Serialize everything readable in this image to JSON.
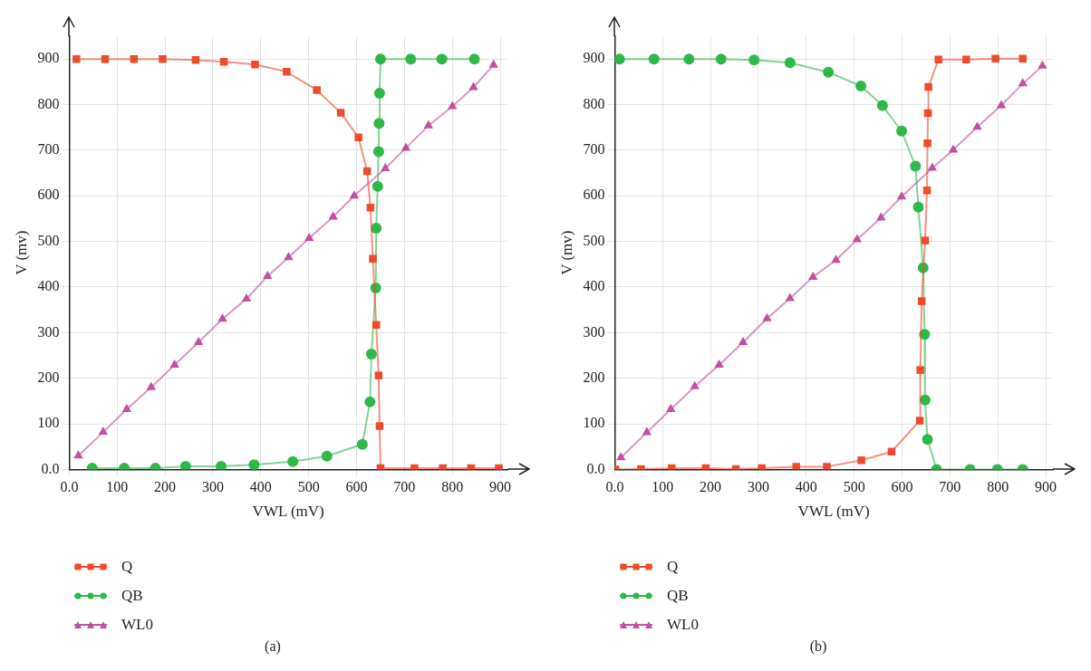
{
  "chart_data": [
    {
      "type": "line",
      "xlabel": "VWL (mV)",
      "ylabel": "V (mv)",
      "annotations": [
        "(a)"
      ],
      "xlim": [
        0,
        915
      ],
      "ylim": [
        0,
        950
      ],
      "xticks": [
        {
          "value": 0,
          "label": "0.0"
        },
        100,
        200,
        300,
        400,
        500,
        600,
        700,
        800,
        900
      ],
      "yticks": [
        {
          "value": 0,
          "label": "0.0"
        },
        100,
        200,
        300,
        400,
        500,
        600,
        700,
        800,
        900
      ],
      "grid": true,
      "legend": "bottom",
      "line_style": "solid",
      "series": [
        {
          "name": "Q",
          "color": "#ee4a2c",
          "marker": "square",
          "x": [
            15,
            75,
            135,
            195,
            264,
            323,
            388,
            454,
            517,
            567,
            604,
            622,
            629,
            634,
            641,
            646,
            648,
            650,
            721,
            780,
            839,
            897
          ],
          "values": [
            900,
            900,
            900,
            900,
            898,
            894,
            888,
            872,
            832,
            782,
            728,
            654,
            574,
            462,
            317,
            206,
            95,
            3,
            3,
            3,
            3,
            3
          ]
        },
        {
          "name": "QB",
          "color": "#2eb84a",
          "marker": "circle",
          "x": [
            48,
            115,
            180,
            243,
            317,
            386,
            467,
            538,
            612,
            628,
            631,
            640,
            641,
            644,
            646,
            647,
            648,
            650,
            713,
            778,
            846
          ],
          "values": [
            3,
            3,
            3,
            7,
            7,
            10,
            17,
            29,
            55,
            148,
            253,
            398,
            529,
            621,
            697,
            759,
            825,
            900,
            900,
            900,
            900
          ]
        },
        {
          "name": "WL0",
          "color": "#c050a0",
          "marker": "triangle",
          "x": [
            19,
            71,
            120,
            171,
            220,
            270,
            320,
            370,
            414,
            458,
            501,
            551,
            595,
            660,
            703,
            750,
            800,
            844,
            886
          ],
          "values": [
            30,
            82,
            132,
            180,
            229,
            279,
            330,
            374,
            424,
            465,
            507,
            554,
            600,
            660,
            705,
            754,
            796,
            838,
            887
          ]
        }
      ]
    },
    {
      "type": "line",
      "xlabel": "VWL (mV)",
      "ylabel": "V (mv)",
      "annotations": [
        "(b)"
      ],
      "xlim": [
        0,
        915
      ],
      "ylim": [
        0,
        950
      ],
      "xticks": [
        {
          "value": 0,
          "label": "0.0"
        },
        100,
        200,
        300,
        400,
        500,
        600,
        700,
        800,
        900
      ],
      "yticks": [
        {
          "value": 0,
          "label": "0.0"
        },
        100,
        200,
        300,
        400,
        500,
        600,
        700,
        800,
        900
      ],
      "grid": true,
      "legend": "bottom",
      "line_style": "solid",
      "series": [
        {
          "name": "Q",
          "color": "#ee4a2c",
          "marker": "square",
          "x": [
            1,
            55,
            119,
            190,
            253,
            307,
            379,
            443,
            515,
            578,
            637,
            638,
            641,
            648,
            652,
            653,
            654,
            655,
            676,
            734,
            795,
            852
          ],
          "values": [
            0,
            1,
            3,
            3,
            1,
            3,
            6,
            6,
            20,
            39,
            107,
            218,
            369,
            502,
            612,
            715,
            781,
            839,
            899,
            899,
            901,
            901
          ]
        },
        {
          "name": "QB",
          "color": "#2eb84a",
          "marker": "circle",
          "x": [
            10,
            82,
            155,
            222,
            291,
            366,
            446,
            514,
            559,
            599,
            628,
            634,
            644,
            647,
            648,
            653,
            672,
            742,
            799,
            852
          ],
          "values": [
            900,
            900,
            900,
            900,
            898,
            892,
            871,
            841,
            798,
            742,
            665,
            575,
            442,
            296,
            152,
            66,
            0,
            0,
            0,
            0
          ]
        },
        {
          "name": "WL0",
          "color": "#c050a0",
          "marker": "triangle",
          "x": [
            13,
            67,
            117,
            167,
            218,
            268,
            318,
            366,
            414,
            462,
            506,
            556,
            599,
            663,
            707,
            757,
            807,
            852,
            893
          ],
          "values": [
            26,
            81,
            132,
            182,
            229,
            279,
            331,
            375,
            422,
            459,
            504,
            552,
            598,
            661,
            701,
            751,
            798,
            846,
            885
          ]
        }
      ]
    }
  ]
}
